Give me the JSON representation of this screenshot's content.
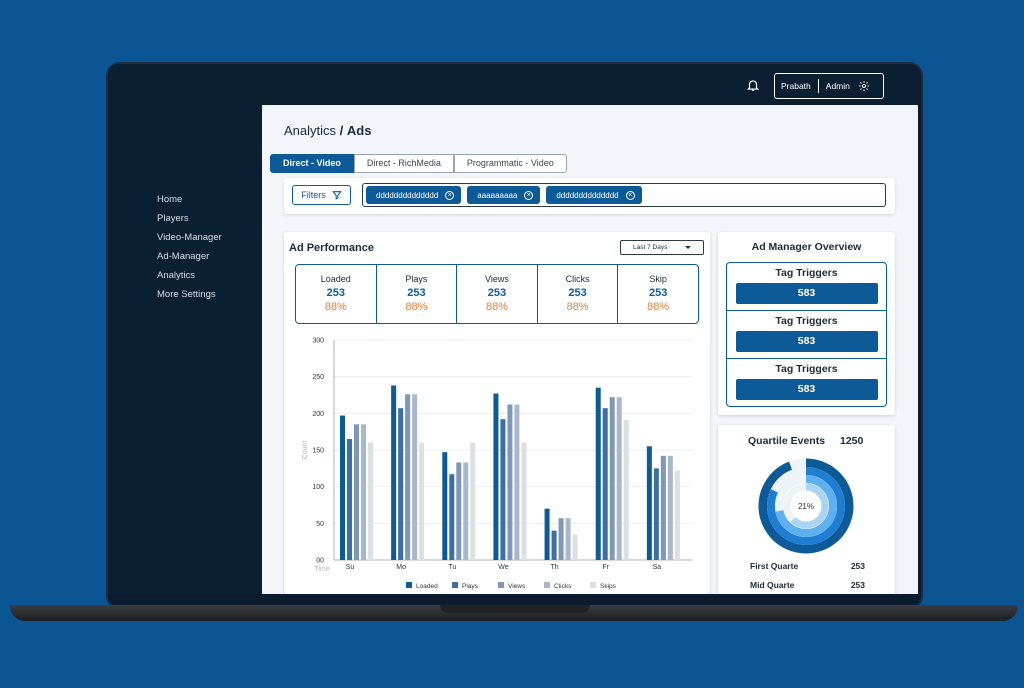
{
  "topbar": {
    "user_name": "Prabath",
    "user_role": "Admin"
  },
  "sidebar": {
    "items": [
      {
        "label": "Home"
      },
      {
        "label": "Players"
      },
      {
        "label": "Video-Manager"
      },
      {
        "label": "Ad-Manager"
      },
      {
        "label": "Analytics"
      },
      {
        "label": "More Settings"
      }
    ]
  },
  "breadcrumb": {
    "parent": "Analytics",
    "separator": "/",
    "current": "Ads"
  },
  "tabs": [
    {
      "label": "Direct - Video"
    },
    {
      "label": "Direct - RichMedia"
    },
    {
      "label": "Programmatic - Video"
    }
  ],
  "filters": {
    "button_label": "Filters",
    "chips": [
      {
        "label": "dddddddddddddd"
      },
      {
        "label": "aaaaaaaaa"
      },
      {
        "label": "dddddddddddddd"
      }
    ]
  },
  "ad_performance": {
    "title": "Ad Performance",
    "range": "Last 7 Days",
    "metrics": [
      {
        "label": "Loaded",
        "value": "253",
        "percent": "88%"
      },
      {
        "label": "Plays",
        "value": "253",
        "percent": "88%"
      },
      {
        "label": "Views",
        "value": "253",
        "percent": "88%"
      },
      {
        "label": "Clicks",
        "value": "253",
        "percent": "88%"
      },
      {
        "label": "Skip",
        "value": "253",
        "percent": "88%"
      }
    ]
  },
  "chart_data": {
    "type": "bar",
    "xlabel": "Time",
    "ylabel": "Count",
    "ylim": [
      0,
      300
    ],
    "yticks": [
      "00",
      "50",
      "100",
      "150",
      "200",
      "250",
      "300"
    ],
    "categories": [
      "Su",
      "Mo",
      "Tu",
      "We",
      "Th",
      "Fr",
      "Sa"
    ],
    "series": [
      {
        "name": "Loaded",
        "color": "#0d5a99",
        "values": [
          197,
          238,
          147,
          227,
          70,
          235,
          155
        ]
      },
      {
        "name": "Plays",
        "color": "#3d6ea8",
        "values": [
          165,
          207,
          117,
          192,
          40,
          207,
          125
        ]
      },
      {
        "name": "Views",
        "color": "#7f98b8",
        "values": [
          185,
          226,
          133,
          212,
          57,
          222,
          142
        ]
      },
      {
        "name": "Clicks",
        "color": "#a8b8cc",
        "values": [
          185,
          226,
          133,
          212,
          57,
          222,
          142
        ]
      },
      {
        "name": "Skips",
        "color": "#dcdfe3",
        "values": [
          160,
          160,
          160,
          160,
          35,
          191,
          122
        ]
      }
    ],
    "grid": true,
    "legend": "bottom"
  },
  "overview": {
    "title": "Ad Manager Overview",
    "triggers": [
      {
        "label": "Tag Triggers",
        "value": "583"
      },
      {
        "label": "Tag Triggers",
        "value": "583"
      },
      {
        "label": "Tag Triggers",
        "value": "583"
      }
    ]
  },
  "quartile": {
    "title": "Quartile Events",
    "total": "1250",
    "center_label": "21%",
    "rings": [
      {
        "fraction": 0.94,
        "color": "#0d5a99"
      },
      {
        "fraction": 0.82,
        "color": "#1e7fd2"
      },
      {
        "fraction": 0.72,
        "color": "#5fb0ee"
      },
      {
        "fraction": 0.62,
        "color": "#a9d4f6"
      }
    ],
    "rows": [
      {
        "label": "First Quarte",
        "value": "253"
      },
      {
        "label": "Mid Quarte",
        "value": "253"
      }
    ]
  }
}
